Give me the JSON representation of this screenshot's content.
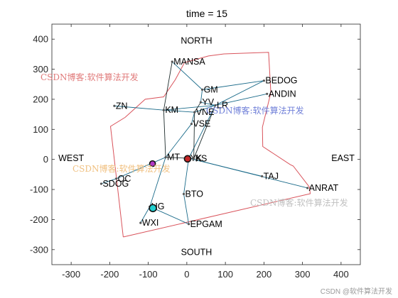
{
  "chart_data": {
    "type": "scatter",
    "title": "time = 15",
    "xlim": [
      -350,
      450
    ],
    "ylim": [
      -350,
      450
    ],
    "x_ticks": [
      -300,
      -200,
      -100,
      0,
      100,
      200,
      300,
      400
    ],
    "y_ticks": [
      -300,
      -200,
      -100,
      0,
      100,
      200,
      300,
      400
    ],
    "grid": false,
    "colors": {
      "boundary": "#d9535b",
      "link_blue": "#1b6b8a",
      "link_dark": "#1f2d2d",
      "node": "#555555"
    },
    "region_labels": [
      {
        "text": "NORTH",
        "x": 25,
        "y": 385
      },
      {
        "text": "SOUTH",
        "x": 25,
        "y": -318
      },
      {
        "text": "WEST",
        "x": -300,
        "y": -5
      },
      {
        "text": "EAST",
        "x": 405,
        "y": -5
      }
    ],
    "boundary": [
      [
        -165,
        -258
      ],
      [
        -198,
        110
      ],
      [
        -160,
        140
      ],
      [
        -108,
        200
      ],
      [
        -60,
        208
      ],
      [
        -30,
        265
      ],
      [
        -6,
        322
      ],
      [
        56,
        344
      ],
      [
        96,
        351
      ],
      [
        212,
        356
      ],
      [
        218,
        222
      ],
      [
        196,
        107
      ],
      [
        197,
        43
      ],
      [
        268,
        -17
      ],
      [
        276,
        -22
      ],
      [
        318,
        -92
      ],
      [
        320,
        -114
      ],
      [
        -165,
        -258
      ]
    ],
    "nodes": [
      {
        "name": "MANSA",
        "x": -38,
        "y": 325
      },
      {
        "name": "GM",
        "x": 40,
        "y": 232
      },
      {
        "name": "BEDOG",
        "x": 200,
        "y": 262
      },
      {
        "name": "ANDIN",
        "x": 208,
        "y": 218
      },
      {
        "name": "YV",
        "x": 36,
        "y": 190
      },
      {
        "name": "LR",
        "x": 74,
        "y": 180
      },
      {
        "name": "ZN",
        "x": -188,
        "y": 178
      },
      {
        "name": "KM",
        "x": -60,
        "y": 164
      },
      {
        "name": "VNE",
        "x": 20,
        "y": 157
      },
      {
        "name": "VSE",
        "x": 12,
        "y": 118
      },
      {
        "name": "MT",
        "x": -55,
        "y": 7
      },
      {
        "name": "YK",
        "x": 5,
        "y": 4
      },
      {
        "name": "KS",
        "x": 18,
        "y": 3
      },
      {
        "name": "TAJ",
        "x": 195,
        "y": -56
      },
      {
        "name": "ANRAT",
        "x": 313,
        "y": -95
      },
      {
        "name": "OC",
        "x": -183,
        "y": -64
      },
      {
        "name": "SDOG",
        "x": -222,
        "y": -81
      },
      {
        "name": "BTO",
        "x": -8,
        "y": -115
      },
      {
        "name": "HG",
        "x": -96,
        "y": -157
      },
      {
        "name": "EPGAM",
        "x": 5,
        "y": -215
      },
      {
        "name": "WXI",
        "x": -120,
        "y": -211
      }
    ],
    "edges_blue": [
      [
        "MANSA",
        "GM"
      ],
      [
        "GM",
        "BEDOG"
      ],
      [
        "GM",
        "YV"
      ],
      [
        "YV",
        "LR"
      ],
      [
        "LR",
        "BEDOG"
      ],
      [
        "LR",
        "ANDIN"
      ],
      [
        "ZN",
        "KM"
      ],
      [
        "KM",
        "VNE"
      ],
      [
        "KM",
        "LR"
      ],
      [
        "VNE",
        "LR"
      ],
      [
        "VNE",
        "VSE"
      ],
      [
        "VSE",
        "MT"
      ],
      [
        "LR",
        "YK"
      ],
      [
        "YK",
        "TAJ"
      ],
      [
        "YK",
        "ANRAT"
      ],
      [
        "YK",
        "BTO"
      ],
      [
        "BTO",
        "EPGAM"
      ],
      [
        "MT",
        "OC"
      ],
      [
        "OC",
        "SDOG"
      ],
      [
        "MT",
        "HG"
      ],
      [
        "HG",
        "WXI"
      ],
      [
        "EPGAM",
        "HG"
      ]
    ],
    "edges_dark": [
      [
        "MANSA",
        "KM"
      ],
      [
        "KM",
        "MT"
      ],
      [
        "MT",
        "YK"
      ],
      [
        "YK",
        "KS"
      ],
      [
        "KS",
        "VNE"
      ],
      [
        "KS",
        "LR"
      ],
      [
        "YV",
        "VNE"
      ]
    ],
    "agents": [
      {
        "x": 2,
        "y": 2,
        "fill": "#c62828",
        "r": 4.5
      },
      {
        "x": -89,
        "y": -14,
        "fill": "#b239c6",
        "r": 4
      },
      {
        "x": -88,
        "y": -162,
        "fill": "#20d0d0",
        "r": 5
      }
    ]
  },
  "watermarks": [
    {
      "text": "CSDN博客:软件算法开发",
      "color": "#e07a7a"
    },
    {
      "text": "CSDN博客:软件算法开发",
      "color": "#6f7fd8"
    },
    {
      "text": "CSDN博客:软件算法开发",
      "color": "#f0c080"
    },
    {
      "text": "CSDN博客:软件算法开发",
      "color": "#c0c0c0"
    }
  ],
  "credit": "CSDN @软件算法开发"
}
